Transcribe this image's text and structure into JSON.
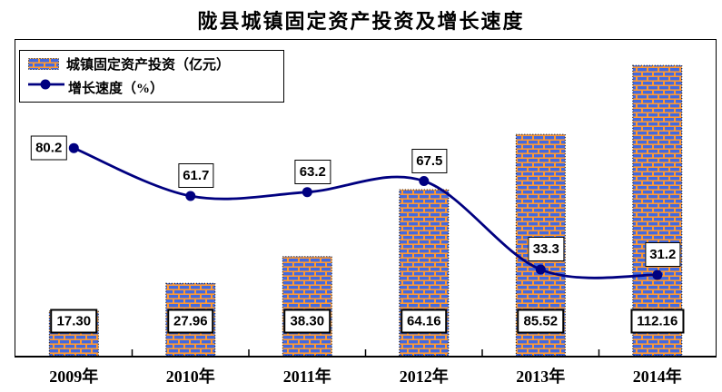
{
  "title": "陇县城镇固定资产投资及增长速度",
  "legend": {
    "bar_label": "城镇固定资产投资（亿元）",
    "line_label": "增长速度（%）"
  },
  "colors": {
    "brick_blue": "#4169E1",
    "mortar_orange": "#FF9933",
    "line_navy": "#000080",
    "frame_black": "#000000",
    "background": "#FFFFFF"
  },
  "chart_data": {
    "type": "bar",
    "title": "陇县城镇固定资产投资及增长速度",
    "xlabel": "",
    "ylabel": "",
    "categories": [
      "2009年",
      "2010年",
      "2011年",
      "2012年",
      "2013年",
      "2014年"
    ],
    "series": [
      {
        "name": "城镇固定资产投资（亿元）",
        "type": "bar",
        "values": [
          17.3,
          27.96,
          38.3,
          64.16,
          85.52,
          112.16
        ],
        "labels": [
          "17.30",
          "27.96",
          "38.30",
          "64.16",
          "85.52",
          "112.16"
        ],
        "fill_style": "brick-pattern",
        "brick_color": "#4169E1",
        "mortar_color": "#FF9933"
      },
      {
        "name": "增长速度（%）",
        "type": "line",
        "smooth": true,
        "values": [
          80.2,
          61.7,
          63.2,
          67.5,
          33.3,
          31.2
        ],
        "labels": [
          "80.2",
          "61.7",
          "63.2",
          "67.5",
          "33.3",
          "31.2"
        ],
        "color": "#000080"
      }
    ],
    "ylim": [
      0,
      122
    ],
    "grid": false,
    "y_axis_labels_visible": false,
    "legend_position": "top-left-inside",
    "data_labels": "boxed"
  }
}
